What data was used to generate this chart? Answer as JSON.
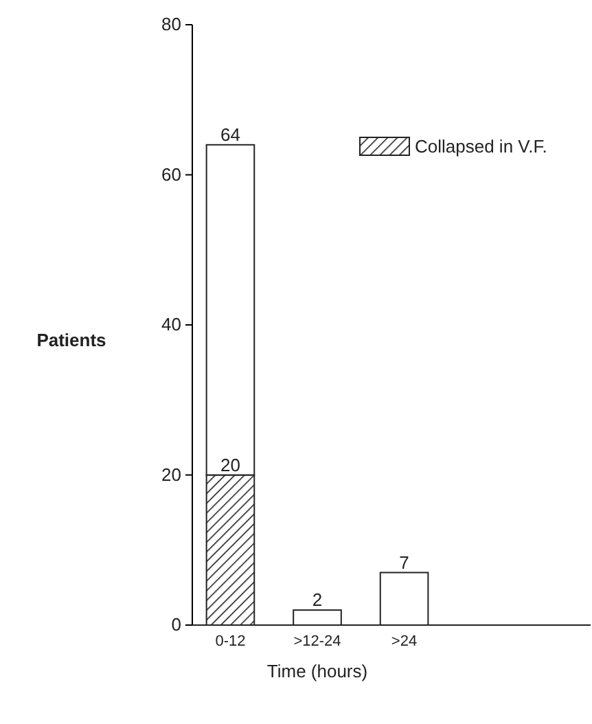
{
  "chart_data": {
    "type": "bar",
    "stacked": true,
    "xlabel": "Time (hours)",
    "ylabel": "Patients",
    "categories": [
      "0-12",
      ">12-24",
      ">24"
    ],
    "series": [
      {
        "name": "Collapsed in V.F.",
        "color": "#222222",
        "values": [
          20,
          0,
          0
        ],
        "value_labels": [
          "20",
          null,
          null
        ]
      },
      {
        "color": "#ffffff",
        "values": [
          44,
          2,
          7
        ]
      }
    ],
    "totals": [
      "64",
      "2",
      "7"
    ],
    "ylim": [
      0,
      80
    ],
    "yticks": [
      0,
      20,
      40,
      60,
      80
    ],
    "grid": false,
    "legend": "top right"
  }
}
